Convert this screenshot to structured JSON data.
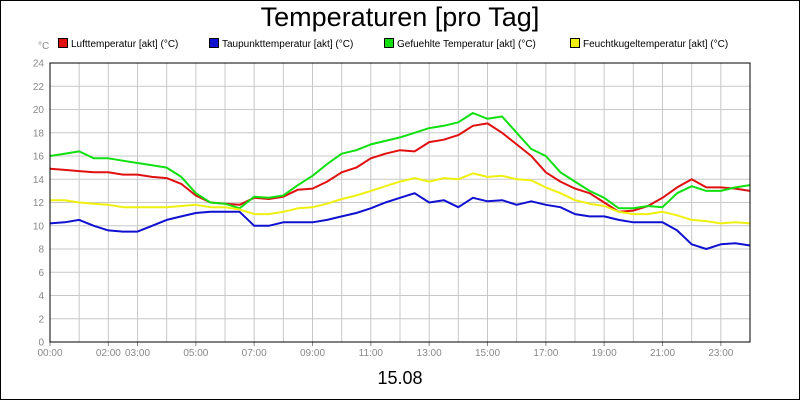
{
  "chart_data": {
    "type": "line",
    "title": "Temperaturen [pro Tag]",
    "ylabel": "°C",
    "xlabel": "15.08",
    "ylim": [
      0,
      24
    ],
    "xlim": [
      0,
      24
    ],
    "grid": true,
    "legend_position": "top",
    "y_ticks": [
      "0",
      "2",
      "4",
      "6",
      "8",
      "10",
      "12",
      "14",
      "16",
      "18",
      "20",
      "22",
      "24"
    ],
    "x_ticks": [
      {
        "hour": 0,
        "label": "00:00"
      },
      {
        "hour": 2,
        "label": "02:00"
      },
      {
        "hour": 3,
        "label": "03:00"
      },
      {
        "hour": 5,
        "label": "05:00"
      },
      {
        "hour": 7,
        "label": "07:00"
      },
      {
        "hour": 9,
        "label": "09:00"
      },
      {
        "hour": 11,
        "label": "11:00"
      },
      {
        "hour": 13,
        "label": "13:00"
      },
      {
        "hour": 15,
        "label": "15:00"
      },
      {
        "hour": 17,
        "label": "17:00"
      },
      {
        "hour": 19,
        "label": "19:00"
      },
      {
        "hour": 21,
        "label": "21:00"
      },
      {
        "hour": 23,
        "label": "23:00"
      }
    ],
    "x": [
      0,
      0.5,
      1,
      1.5,
      2,
      2.5,
      3,
      3.5,
      4,
      4.5,
      5,
      5.5,
      6,
      6.5,
      7,
      7.5,
      8,
      8.5,
      9,
      9.5,
      10,
      10.5,
      11,
      11.5,
      12,
      12.5,
      13,
      13.5,
      14,
      14.5,
      15,
      15.5,
      16,
      16.5,
      17,
      17.5,
      18,
      18.5,
      19,
      19.5,
      20,
      20.5,
      21,
      21.5,
      22,
      22.5,
      23,
      23.5,
      24
    ],
    "series": [
      {
        "name": "Lufttemperatur [akt] (°C)",
        "color": "#e01010",
        "values": [
          14.9,
          14.8,
          14.7,
          14.6,
          14.6,
          14.4,
          14.4,
          14.2,
          14.1,
          13.6,
          12.6,
          12.0,
          11.9,
          11.8,
          12.4,
          12.3,
          12.5,
          13.1,
          13.2,
          13.8,
          14.6,
          15.0,
          15.8,
          16.2,
          16.5,
          16.4,
          17.2,
          17.4,
          17.8,
          18.6,
          18.8,
          18.0,
          17.0,
          16.0,
          14.6,
          13.8,
          13.2,
          12.8,
          12.0,
          11.2,
          11.3,
          11.7,
          12.4,
          13.3,
          14.0,
          13.3,
          13.3,
          13.2,
          13.0
        ]
      },
      {
        "name": "Taupunkttemperatur [akt] (°C)",
        "color": "#1010d0",
        "values": [
          10.2,
          10.3,
          10.5,
          10.0,
          9.6,
          9.5,
          9.5,
          10.0,
          10.5,
          10.8,
          11.1,
          11.2,
          11.2,
          11.2,
          10.0,
          10.0,
          10.3,
          10.3,
          10.3,
          10.5,
          10.8,
          11.1,
          11.5,
          12.0,
          12.4,
          12.8,
          12.0,
          12.2,
          11.6,
          12.4,
          12.1,
          12.2,
          11.8,
          12.1,
          11.8,
          11.6,
          11.0,
          10.8,
          10.8,
          10.5,
          10.3,
          10.3,
          10.3,
          9.6,
          8.4,
          8.0,
          8.4,
          8.5,
          8.3
        ]
      },
      {
        "name": "Gefuehlte Temperatur [akt] (°C)",
        "color": "#10e010",
        "values": [
          16.0,
          16.2,
          16.4,
          15.8,
          15.8,
          15.6,
          15.4,
          15.2,
          15.0,
          14.2,
          12.8,
          12.0,
          11.9,
          11.5,
          12.5,
          12.4,
          12.6,
          13.5,
          14.3,
          15.3,
          16.2,
          16.5,
          17.0,
          17.3,
          17.6,
          18.0,
          18.4,
          18.6,
          18.9,
          19.7,
          19.2,
          19.4,
          18.0,
          16.6,
          16.0,
          14.6,
          13.8,
          13.0,
          12.4,
          11.5,
          11.5,
          11.7,
          11.6,
          12.8,
          13.4,
          13.0,
          13.0,
          13.3,
          13.5
        ]
      },
      {
        "name": "Feuchtkugeltemperatur [akt] (°C)",
        "color": "#f0f010",
        "values": [
          12.2,
          12.2,
          12.0,
          11.9,
          11.8,
          11.6,
          11.6,
          11.6,
          11.6,
          11.7,
          11.8,
          11.6,
          11.6,
          11.4,
          11.0,
          11.0,
          11.2,
          11.5,
          11.6,
          11.9,
          12.3,
          12.6,
          13.0,
          13.4,
          13.8,
          14.1,
          13.8,
          14.1,
          14.0,
          14.5,
          14.2,
          14.3,
          14.0,
          13.9,
          13.3,
          12.8,
          12.2,
          11.9,
          11.7,
          11.2,
          11.0,
          11.0,
          11.2,
          10.9,
          10.5,
          10.4,
          10.2,
          10.3,
          10.2
        ]
      }
    ]
  }
}
